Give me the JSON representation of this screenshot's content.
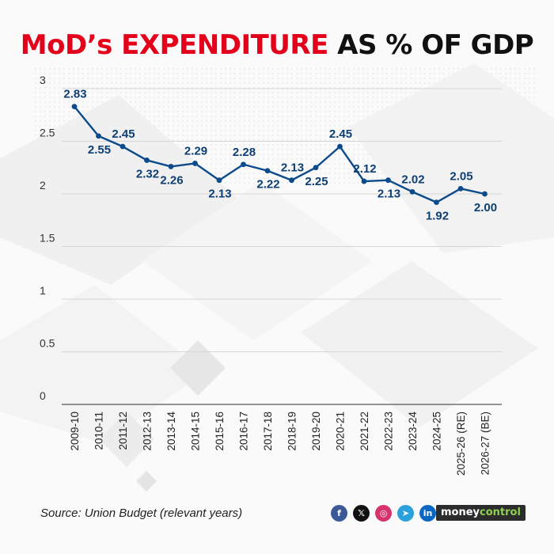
{
  "header": {
    "title_red": "MoD’s EXPENDITURE",
    "title_dark": "AS % OF GDP"
  },
  "chart_data": {
    "type": "line",
    "title": "MoD’s EXPENDITURE AS % OF GDP",
    "xlabel": "",
    "ylabel": "",
    "categories": [
      "2009-10",
      "2010-11",
      "2011-12",
      "2012-13",
      "2013-14",
      "2014-15",
      "2015-16",
      "2016-17",
      "2017-18",
      "2018-19",
      "2019-20",
      "2020-21",
      "2021-22",
      "2022-23",
      "2023-24",
      "2024-25",
      "2025-26 (RE)",
      "2026-27 (BE)"
    ],
    "values": [
      2.83,
      2.55,
      2.45,
      2.32,
      2.26,
      2.29,
      2.13,
      2.28,
      2.22,
      2.13,
      2.25,
      2.45,
      2.12,
      2.13,
      2.02,
      1.92,
      2.05,
      2.0
    ],
    "value_labels": [
      "2.83",
      "2.55",
      "2.45",
      "2.32",
      "2.26",
      "2.29",
      "2.13",
      "2.28",
      "2.22",
      "2.13",
      "2.25",
      "2.45",
      "2.12",
      "2.13",
      "2.02",
      "1.92",
      "2.05",
      "2.00"
    ],
    "label_positions": [
      "above",
      "below",
      "above",
      "below",
      "below",
      "above",
      "below",
      "above",
      "below",
      "above",
      "below",
      "above",
      "above",
      "below",
      "above",
      "below",
      "above",
      "below"
    ],
    "yticks": [
      "0",
      "0.5",
      "1",
      "1.5",
      "2",
      "2.5",
      "3"
    ],
    "ylim": [
      0,
      3
    ],
    "grid": true,
    "legend": "none",
    "line_color": "#0b4a8b"
  },
  "footer": {
    "source": "Source: Union Budget (relevant years)",
    "social": [
      {
        "icon": "facebook-icon",
        "glyph": "f",
        "color": "#3b5998"
      },
      {
        "icon": "x-icon",
        "glyph": "𝕏",
        "color": "#111111"
      },
      {
        "icon": "instagram-icon",
        "glyph": "◎",
        "color": "#d6336c"
      },
      {
        "icon": "telegram-icon",
        "glyph": "➤",
        "color": "#2aa1da"
      },
      {
        "icon": "linkedin-icon",
        "glyph": "in",
        "color": "#0a66c2"
      }
    ],
    "logo_left": "money",
    "logo_right": "control"
  }
}
